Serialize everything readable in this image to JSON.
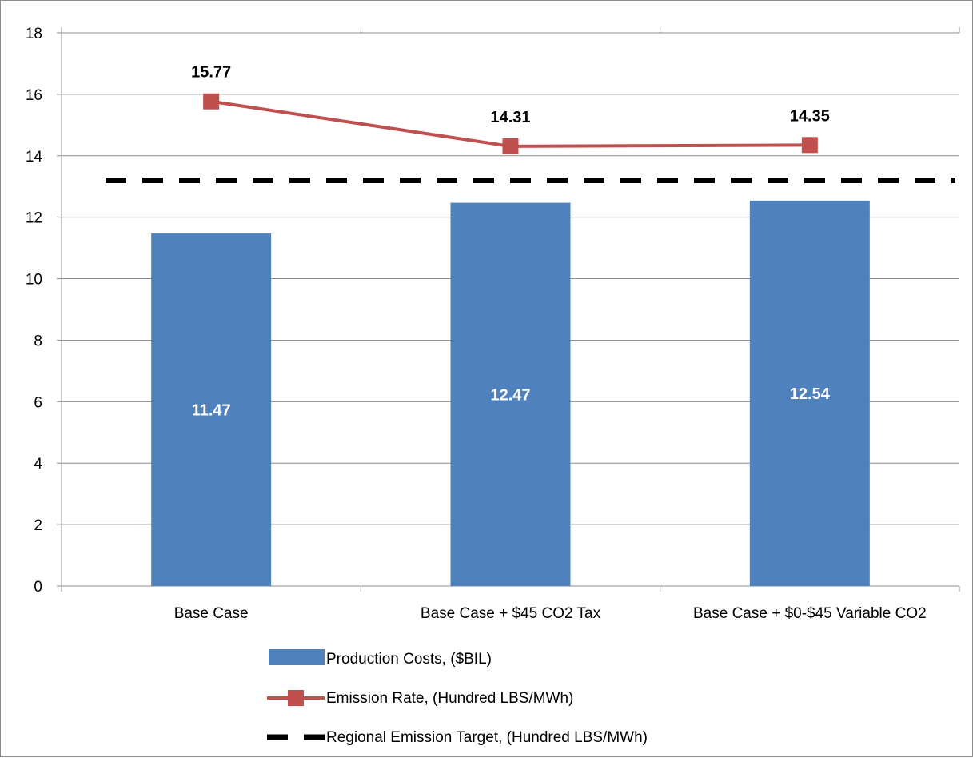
{
  "chart_data": {
    "type": "bar",
    "categories": [
      "Base Case",
      "Base Case + $45 CO2 Tax",
      "Base Case + $0-$45 Variable CO2"
    ],
    "series": [
      {
        "name": "Production Costs, ($BIL)",
        "type": "bar",
        "color": "#4F81BD",
        "values": [
          11.47,
          12.47,
          12.54
        ]
      },
      {
        "name": "Emission Rate, (Hundred LBS/MWh)",
        "type": "line",
        "marker": "square",
        "color": "#C0504D",
        "values": [
          15.77,
          14.31,
          14.35
        ]
      },
      {
        "name": "Regional Emission Target, (Hundred LBS/MWh)",
        "type": "dashed-line",
        "color": "#000000",
        "values": [
          13.2,
          13.2,
          13.2
        ]
      }
    ],
    "bar_labels": [
      "11.47",
      "12.47",
      "12.54"
    ],
    "point_labels": [
      "15.77",
      "14.31",
      "14.35"
    ],
    "ylim": [
      0,
      18
    ],
    "yticks": [
      "0",
      "2",
      "4",
      "6",
      "8",
      "10",
      "12",
      "14",
      "16",
      "18"
    ],
    "grid": true,
    "legend_position": "bottom"
  }
}
